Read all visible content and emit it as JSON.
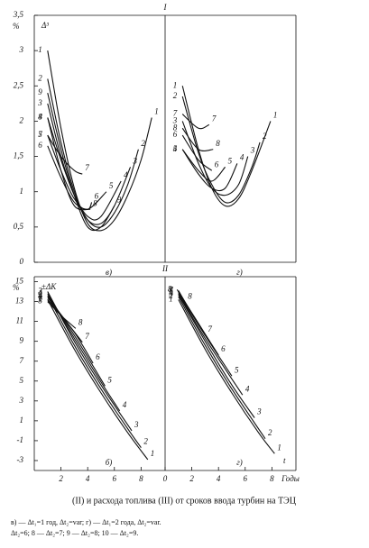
{
  "chart_data": [
    {
      "type": "line",
      "title": "I",
      "y_unit": "%",
      "ylabel": "Δ³",
      "label": "в)",
      "xlim": [
        0,
        9.8
      ],
      "ylim": [
        0,
        3.5
      ],
      "yticks": [
        0,
        {
          "value": 0.5,
          "label": "0,5"
        },
        1,
        {
          "value": 1.5,
          "label": "1,5"
        },
        2,
        {
          "value": 2.5,
          "label": "2,5"
        },
        3,
        {
          "value": 3.5,
          "label": "3,5"
        }
      ],
      "series": [
        {
          "name": "1",
          "x": [
            1,
            2,
            3,
            4,
            5,
            6,
            7,
            8,
            8.8
          ],
          "values": [
            3.0,
            1.9,
            1.05,
            0.55,
            0.45,
            0.6,
            0.95,
            1.45,
            2.05
          ]
        },
        {
          "name": "2",
          "x": [
            1,
            2,
            3,
            4,
            5,
            6,
            7,
            7.8
          ],
          "values": [
            2.6,
            1.7,
            1.0,
            0.6,
            0.5,
            0.7,
            1.1,
            1.6
          ]
        },
        {
          "name": "9",
          "x": [
            1,
            2,
            3,
            4,
            5,
            6
          ],
          "values": [
            2.4,
            1.6,
            0.95,
            0.5,
            0.5,
            0.8
          ]
        },
        {
          "name": "3",
          "x": [
            1,
            2,
            3,
            4,
            5,
            6,
            7.2
          ],
          "values": [
            2.25,
            1.5,
            0.95,
            0.6,
            0.55,
            0.8,
            1.35
          ]
        },
        {
          "name": "4",
          "x": [
            1,
            2,
            3,
            4,
            5,
            6.5
          ],
          "values": [
            2.05,
            1.45,
            0.95,
            0.65,
            0.65,
            1.15
          ]
        },
        {
          "name": "8",
          "x": [
            1,
            2,
            3,
            4.2
          ],
          "values": [
            2.05,
            1.3,
            0.8,
            0.75
          ]
        },
        {
          "name": "5",
          "x": [
            1,
            2,
            3,
            4,
            5.4
          ],
          "values": [
            1.8,
            1.3,
            0.9,
            0.75,
            1.0
          ]
        },
        {
          "name": "7",
          "x": [
            1,
            2,
            3,
            3.6
          ],
          "values": [
            1.8,
            1.5,
            1.3,
            1.25
          ]
        },
        {
          "name": "6",
          "x": [
            1,
            2,
            3,
            4,
            4.3
          ],
          "values": [
            1.65,
            1.2,
            0.85,
            0.75,
            0.85
          ]
        }
      ]
    },
    {
      "type": "line",
      "label": "г)",
      "xlim": [
        0,
        9.8
      ],
      "ylim": [
        0,
        3.5
      ],
      "series": [
        {
          "name": "1",
          "x": [
            1.3,
            2.5,
            3.5,
            4.5,
            5.5,
            6.5,
            7.9
          ],
          "values": [
            2.5,
            1.6,
            1.05,
            0.8,
            0.9,
            1.3,
            2.0
          ]
        },
        {
          "name": "2",
          "x": [
            1.3,
            2.5,
            3.5,
            4.5,
            5.5,
            6.5,
            7.1
          ],
          "values": [
            2.35,
            1.55,
            1.1,
            0.85,
            0.95,
            1.35,
            1.7
          ]
        },
        {
          "name": "7",
          "x": [
            1.3,
            2.5,
            3.3
          ],
          "values": [
            2.1,
            1.9,
            1.95
          ]
        },
        {
          "name": "3",
          "x": [
            1.3,
            2.5,
            3.5,
            4.5,
            5.5,
            6.2
          ],
          "values": [
            2.0,
            1.4,
            1.05,
            0.95,
            1.1,
            1.5
          ]
        },
        {
          "name": "8",
          "x": [
            1.3,
            2.5,
            3.6
          ],
          "values": [
            1.9,
            1.6,
            1.6
          ]
        },
        {
          "name": "6",
          "x": [
            1.3,
            2.5,
            3.5
          ],
          "values": [
            1.8,
            1.45,
            1.3
          ]
        },
        {
          "name": "5",
          "x": [
            1.3,
            2.5,
            3.5,
            4.5
          ],
          "values": [
            1.6,
            1.3,
            1.15,
            1.35
          ]
        },
        {
          "name": "4",
          "x": [
            1.3,
            2.5,
            3.5,
            4.5,
            5.4
          ],
          "values": [
            1.6,
            1.25,
            1.05,
            1.05,
            1.4
          ]
        }
      ]
    },
    {
      "type": "line",
      "title": "II",
      "y_unit": "%",
      "ylabel": "±ΔK",
      "label": "б)",
      "xlim": [
        0,
        9.8
      ],
      "ylim": [
        -4,
        15.5
      ],
      "xticks": [
        2,
        4,
        6,
        8
      ],
      "yticks": [
        15,
        13,
        11,
        9,
        7,
        5,
        3,
        1,
        -1,
        -3
      ],
      "series": [
        {
          "name": "1",
          "x": [
            1,
            3,
            5,
            7,
            8.5
          ],
          "values": [
            13.2,
            8.2,
            3.8,
            -0.2,
            -2.9
          ]
        },
        {
          "name": "2",
          "x": [
            1,
            3,
            5,
            7,
            8
          ],
          "values": [
            13.6,
            8.6,
            4.2,
            0.2,
            -1.7
          ]
        },
        {
          "name": "3",
          "x": [
            1,
            3,
            5,
            7.3
          ],
          "values": [
            14,
            9,
            4.6,
            0.0
          ]
        },
        {
          "name": "4",
          "x": [
            1,
            3,
            5,
            6.4
          ],
          "values": [
            13.8,
            9.3,
            4.9,
            2.0
          ]
        },
        {
          "name": "5",
          "x": [
            1,
            3,
            5.3
          ],
          "values": [
            13.6,
            9.6,
            4.5
          ]
        },
        {
          "name": "6",
          "x": [
            1,
            3,
            4.4
          ],
          "values": [
            13.4,
            9.9,
            6.8
          ]
        },
        {
          "name": "7",
          "x": [
            1,
            2.5,
            3.6
          ],
          "values": [
            13.2,
            10.8,
            8.9
          ]
        },
        {
          "name": "8",
          "x": [
            1,
            2,
            3.1
          ],
          "values": [
            13,
            11.6,
            10.3
          ]
        }
      ]
    },
    {
      "type": "line",
      "label": "г)",
      "xlabel": "Годы",
      "x_symbol": "t",
      "xlim": [
        0,
        9.8
      ],
      "ylim": [
        -4,
        15.5
      ],
      "xticks": [
        0,
        2,
        4,
        6,
        8
      ],
      "series": [
        {
          "name": "1",
          "x": [
            1,
            3,
            5,
            7,
            8.2
          ],
          "values": [
            13.2,
            8.2,
            3.8,
            -0.2,
            -2.3
          ]
        },
        {
          "name": "2",
          "x": [
            1,
            3,
            5,
            7.5
          ],
          "values": [
            13.5,
            8.6,
            4.2,
            -0.8
          ]
        },
        {
          "name": "3",
          "x": [
            1,
            3,
            5,
            6.7
          ],
          "values": [
            13.7,
            9,
            4.6,
            1.3
          ]
        },
        {
          "name": "4",
          "x": [
            1,
            3,
            5.8
          ],
          "values": [
            13.8,
            9.3,
            3.6
          ]
        },
        {
          "name": "5",
          "x": [
            1,
            3,
            5
          ],
          "values": [
            13.9,
            9.6,
            5.5
          ]
        },
        {
          "name": "6",
          "x": [
            1,
            2.5,
            4
          ],
          "values": [
            14,
            10.8,
            7.6
          ]
        },
        {
          "name": "7",
          "x": [
            1,
            2,
            3
          ],
          "values": [
            14.1,
            11.8,
            9.6
          ]
        },
        {
          "name": "8",
          "x": [
            0.9,
            1.5
          ],
          "values": [
            14.2,
            12.9
          ]
        }
      ]
    }
  ],
  "caption": [
    "(II) и расхода топлива (III) от сроков ввода турбин на ТЭЦ",
    "в) — Δt₁=1 год, Δt₂=var; г) — Δt₁=2 года, Δt₂=var.",
    "Δt₂=6; 8 — Δt₂=7; 9 — Δt₂=8; 10 — Δt₂=9."
  ]
}
